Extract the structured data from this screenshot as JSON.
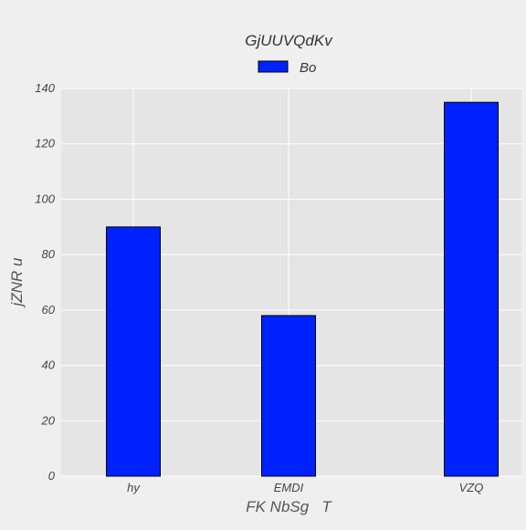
{
  "chart_data": {
    "type": "bar",
    "title": "GjUUVQdKv",
    "xlabel": "FK NbSg   T",
    "ylabel": "jZNR u",
    "categories": [
      "hy",
      "EMDI",
      "VZQ"
    ],
    "series": [
      {
        "name": "Bo",
        "values": [
          90,
          58,
          135
        ]
      }
    ],
    "ylim": [
      0,
      140
    ],
    "yticks": [
      0,
      20,
      40,
      60,
      80,
      100,
      120,
      140
    ],
    "grid": true,
    "legend": "top-center",
    "colors": {
      "bar": "#0022ff",
      "plot_background": "#e5e5e5",
      "figure_background": "#efefef",
      "grid": "#ffffff"
    }
  }
}
